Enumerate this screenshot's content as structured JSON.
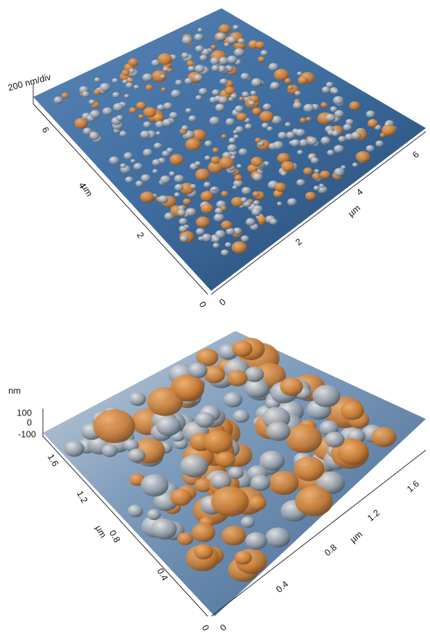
{
  "panels": [
    {
      "z_label": "200 nm/div",
      "left_axis": {
        "label": "µm",
        "ticks": [
          "6",
          "4",
          "2",
          "0"
        ]
      },
      "right_axis": {
        "label": "µm",
        "ticks": [
          "0",
          "2",
          "4",
          "6"
        ]
      }
    },
    {
      "z_label": "nm",
      "z_ticks": [
        "100",
        "0",
        "-100"
      ],
      "left_axis": {
        "label": "µm",
        "ticks": [
          "1.6",
          "1.2",
          "0.8",
          "0.4",
          "0"
        ]
      },
      "right_axis": {
        "label": "µm",
        "ticks": [
          "0",
          "0.4",
          "0.8",
          "1.2",
          "1.6"
        ]
      }
    }
  ]
}
